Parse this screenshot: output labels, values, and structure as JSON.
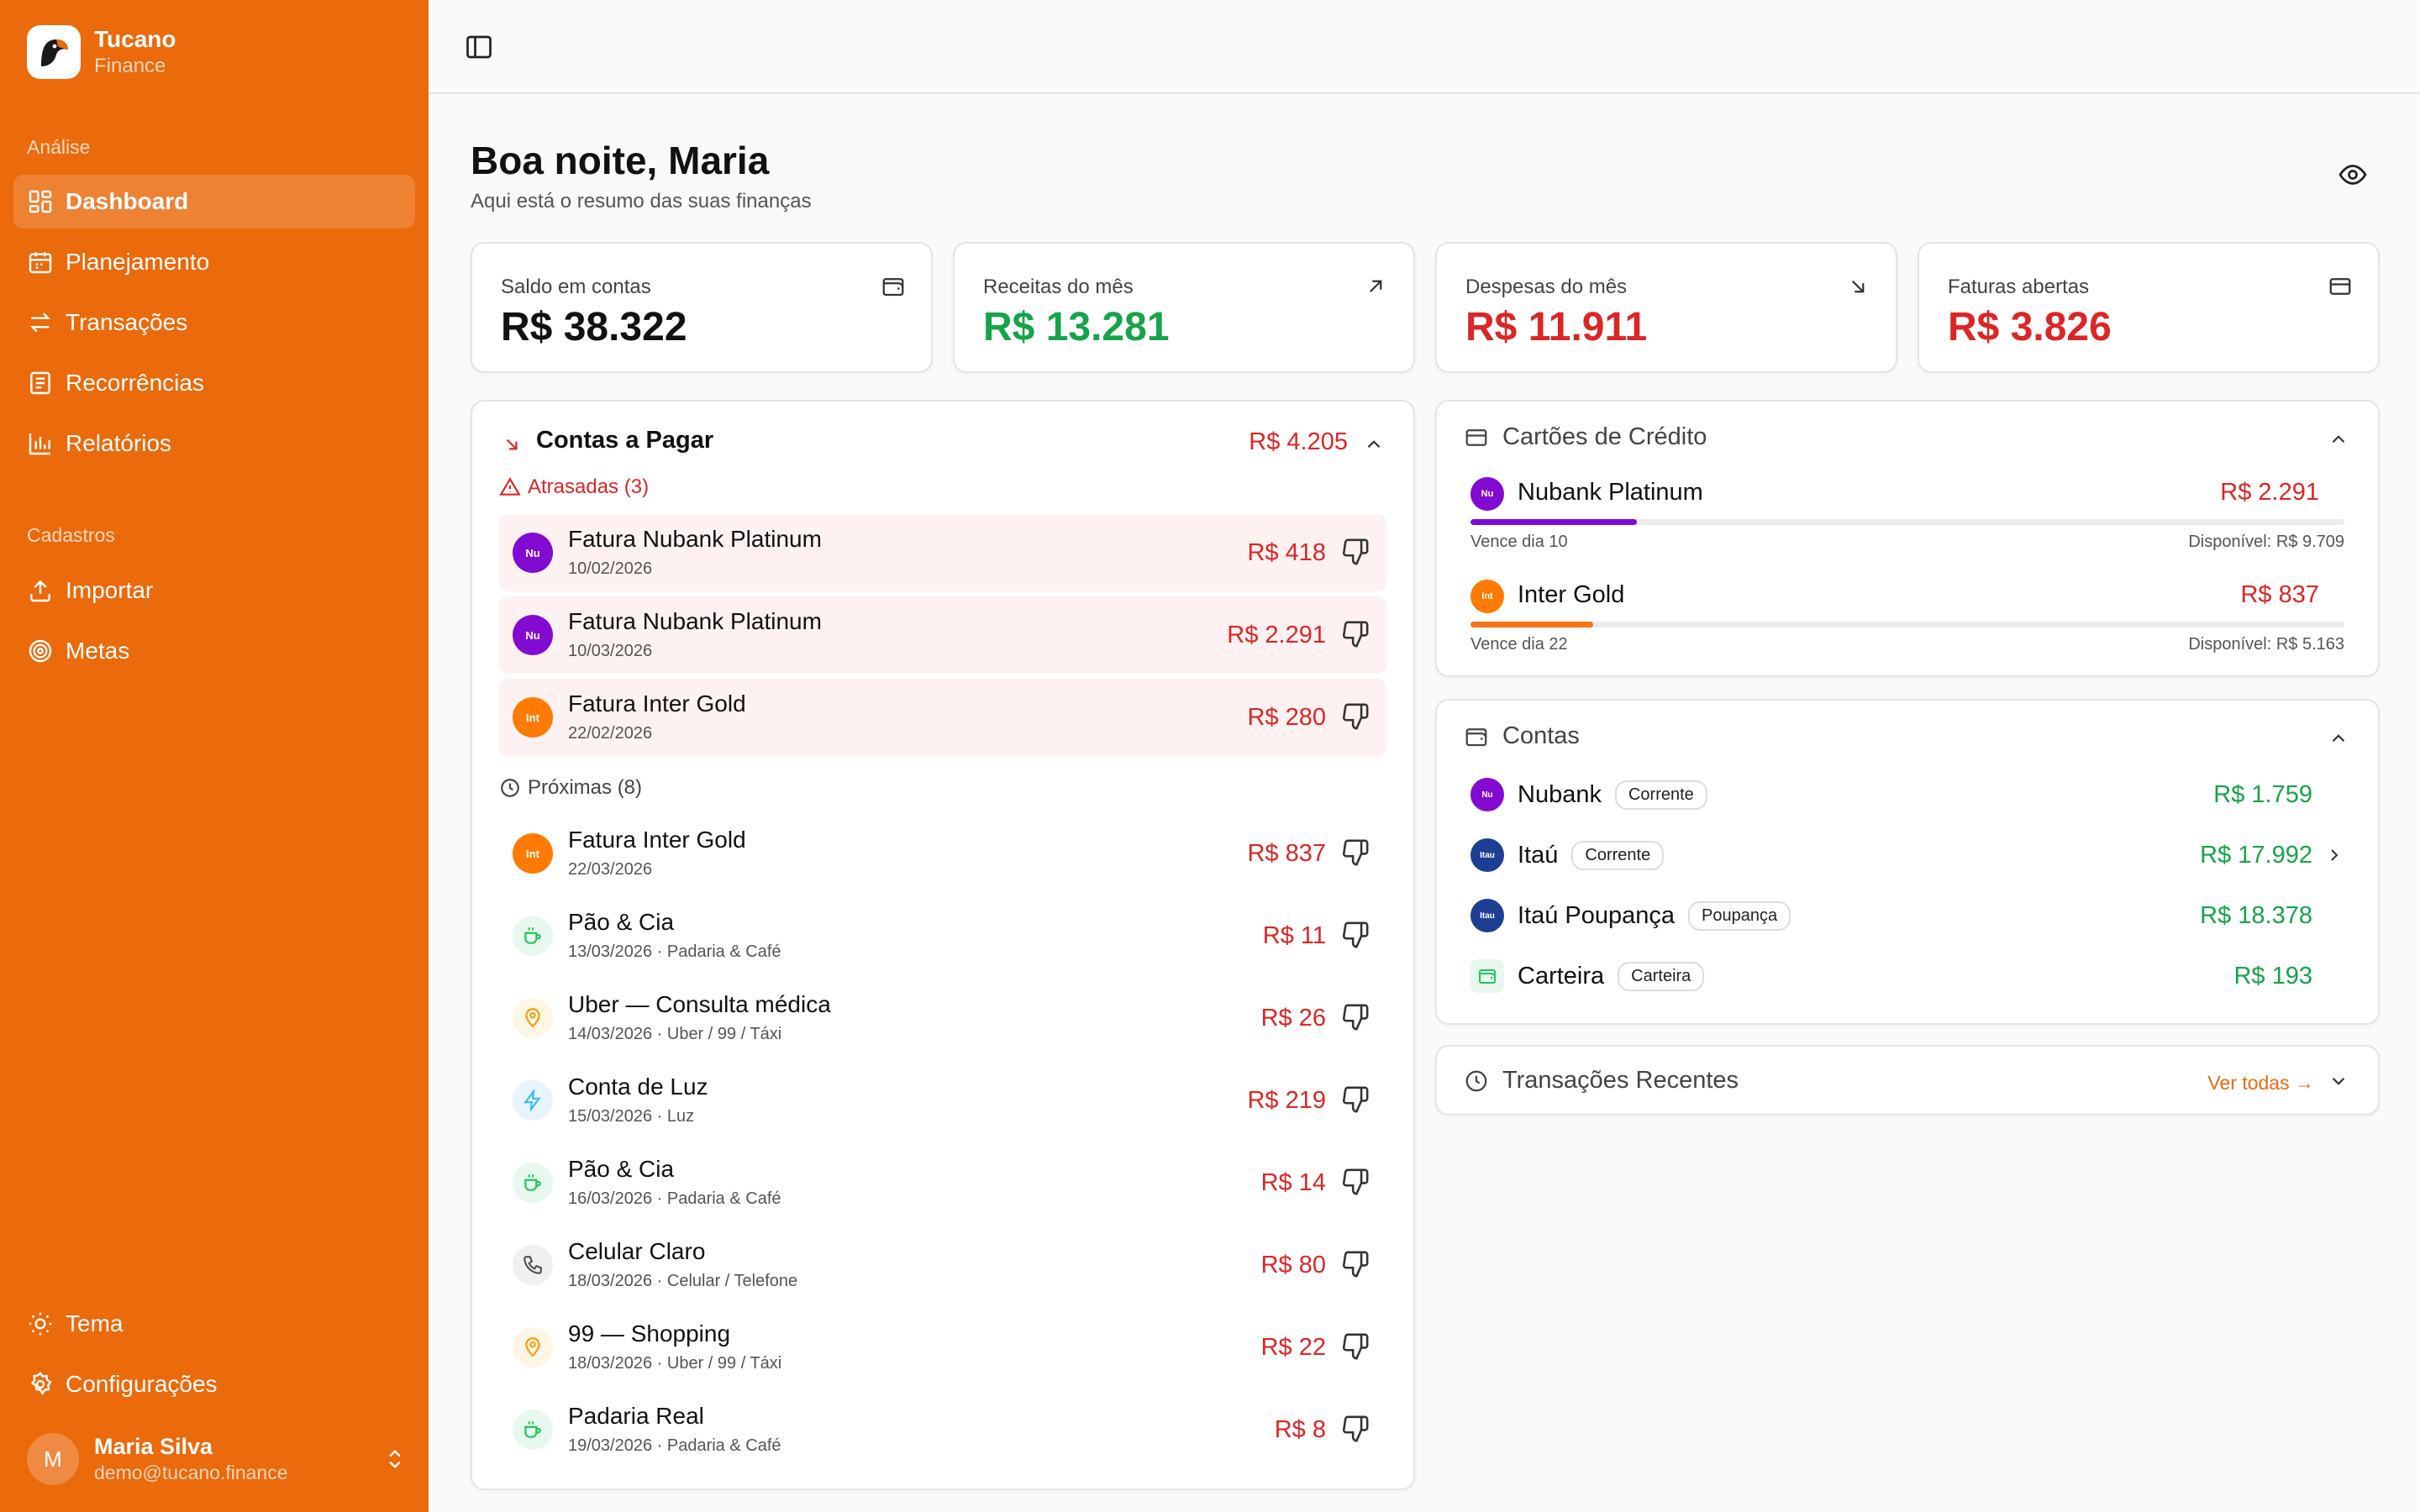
{
  "brand": {
    "name": "Tucano",
    "sub": "Finance"
  },
  "sidebar": {
    "section1": "Análise",
    "analise": [
      {
        "label": "Dashboard",
        "icon": "dashboard-icon",
        "active": true
      },
      {
        "label": "Planejamento",
        "icon": "calendar-icon"
      },
      {
        "label": "Transações",
        "icon": "arrows-icon"
      },
      {
        "label": "Recorrências",
        "icon": "document-icon"
      },
      {
        "label": "Relatórios",
        "icon": "bar-chart-icon"
      }
    ],
    "section2": "Cadastros",
    "cadastros": [
      {
        "label": "Importar",
        "icon": "upload-icon"
      },
      {
        "label": "Metas",
        "icon": "target-icon"
      }
    ],
    "bottom": [
      {
        "label": "Tema",
        "icon": "sun-icon"
      },
      {
        "label": "Configurações",
        "icon": "gear-icon"
      }
    ],
    "user": {
      "initial": "M",
      "name": "Maria Silva",
      "email": "demo@tucano.finance"
    }
  },
  "header": {
    "greeting": "Boa noite, Maria",
    "subtitle": "Aqui está o resumo das suas finanças"
  },
  "stats": [
    {
      "label": "Saldo em contas",
      "value": "R$ 38.322",
      "color": "#111111"
    },
    {
      "label": "Receitas do mês",
      "value": "R$ 13.281",
      "color": "#16a34a"
    },
    {
      "label": "Despesas do mês",
      "value": "R$ 11.911",
      "color": "#dc2626"
    },
    {
      "label": "Faturas abertas",
      "value": "R$ 3.826",
      "color": "#dc2626"
    }
  ],
  "bills": {
    "title": "Contas a Pagar",
    "total": "R$ 4.205",
    "overdue_label": "Atrasadas (3)",
    "overdue": [
      {
        "name": "Fatura Nubank Platinum",
        "meta": "10/02/2026",
        "amount": "R$ 418",
        "badge": "Nu",
        "color": "#820ad1"
      },
      {
        "name": "Fatura Nubank Platinum",
        "meta": "10/03/2026",
        "amount": "R$ 2.291",
        "badge": "Nu",
        "color": "#820ad1"
      },
      {
        "name": "Fatura Inter Gold",
        "meta": "22/02/2026",
        "amount": "R$ 280",
        "badge": "Int",
        "color": "#ff7a00"
      }
    ],
    "upcoming_label": "Próximas (8)",
    "upcoming": [
      {
        "name": "Fatura Inter Gold",
        "meta": "22/03/2026",
        "amount": "R$ 837",
        "badge": "Int",
        "color": "#ff7a00"
      },
      {
        "name": "Pão & Cia",
        "meta": "13/03/2026 · Padaria & Café",
        "amount": "R$ 11",
        "kind": "coffee"
      },
      {
        "name": "Uber — Consulta médica",
        "meta": "14/03/2026 · Uber / 99 / Táxi",
        "amount": "R$ 26",
        "kind": "pin"
      },
      {
        "name": "Conta de Luz",
        "meta": "15/03/2026 · Luz",
        "amount": "R$ 219",
        "kind": "bolt"
      },
      {
        "name": "Pão & Cia",
        "meta": "16/03/2026 · Padaria & Café",
        "amount": "R$ 14",
        "kind": "coffee"
      },
      {
        "name": "Celular Claro",
        "meta": "18/03/2026 · Celular / Telefone",
        "amount": "R$ 80",
        "kind": "phone"
      },
      {
        "name": "99 — Shopping",
        "meta": "18/03/2026 · Uber / 99 / Táxi",
        "amount": "R$ 22",
        "kind": "pin"
      },
      {
        "name": "Padaria Real",
        "meta": "19/03/2026 · Padaria & Café",
        "amount": "R$ 8",
        "kind": "coffee"
      }
    ]
  },
  "credit_cards": {
    "title": "Cartões de Crédito",
    "items": [
      {
        "name": "Nubank Platinum",
        "amount": "R$ 2.291",
        "due": "Vence dia 10",
        "available": "Disponível: R$ 9.709",
        "usage": 0.19,
        "badge": "Nu",
        "color": "#820ad1"
      },
      {
        "name": "Inter Gold",
        "amount": "R$ 837",
        "due": "Vence dia 22",
        "available": "Disponível: R$ 5.163",
        "usage": 0.14,
        "badge": "Int",
        "color": "#ff7a00"
      }
    ]
  },
  "accounts": {
    "title": "Contas",
    "items": [
      {
        "name": "Nubank",
        "type": "Corrente",
        "amount": "R$ 1.759",
        "badge": "Nu",
        "color": "#820ad1"
      },
      {
        "name": "Itaú",
        "type": "Corrente",
        "amount": "R$ 17.992",
        "badge": "Itau",
        "color": "#1c3f94",
        "chevron": true
      },
      {
        "name": "Itaú Poupança",
        "type": "Poupança",
        "amount": "R$ 18.378",
        "badge": "Itau",
        "color": "#1c3f94"
      },
      {
        "name": "Carteira",
        "type": "Carteira",
        "amount": "R$ 193",
        "kind": "wallet"
      }
    ]
  },
  "recent": {
    "title": "Transações Recentes",
    "link": "Ver todas →"
  }
}
